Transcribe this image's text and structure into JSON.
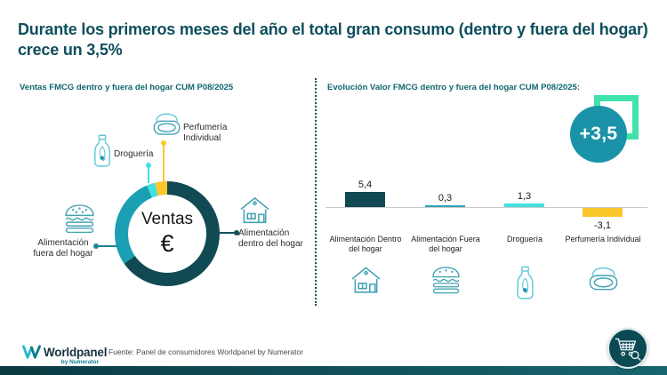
{
  "title": "Durante los primeros meses del año el total gran consumo (dentro y fuera del hogar) crece un 3,5%",
  "colors": {
    "title_text": "#0e4e5c",
    "section_header": "#0e676e",
    "dark_teal": "#114a53",
    "medium_teal": "#1b9fb3",
    "cyan": "#42e0de",
    "yellow": "#fcc72d",
    "mint_green": "#3fe3ab",
    "badge_teal": "#1a93a9",
    "icon_stroke": "#44a3b5",
    "bottom_bar": "#0d4650"
  },
  "chart_data": [
    {
      "type": "pie",
      "title": "Ventas FMCG dentro y fuera del hogar CUM P08/2025",
      "center_line1": "Ventas",
      "center_line2": "€",
      "categories": [
        "Alimentación dentro del hogar",
        "Alimentación fuera del hogar",
        "Droguería",
        "Perfumería Individual"
      ],
      "values_pct": [
        65.3,
        28.3,
        2.6,
        3.8
      ],
      "colors": [
        "#114a53",
        "#1b9fb3",
        "#42e0de",
        "#fcc72d"
      ],
      "legend_position": "around-donut"
    },
    {
      "type": "bar",
      "title": "Evolución Valor FMCG dentro y fuera del hogar CUM P08/2025:",
      "categories": [
        "Alimentación Dentro del hogar",
        "Alimentación Fuera del hogar",
        "Droguería",
        "Perfumería Individual"
      ],
      "values": [
        5.4,
        0.3,
        1.3,
        -3.1
      ],
      "value_labels": [
        "5,4",
        "0,3",
        "1,3",
        "-3,1"
      ],
      "colors": [
        "#114a53",
        "#2fa3bd",
        "#42e0de",
        "#fcc72d"
      ],
      "total_change_label": "+3,5",
      "ylim": [
        -4,
        6
      ],
      "grid": false
    }
  ],
  "footer": {
    "logo_text": "Worldpanel",
    "logo_subtext": "by Numerator",
    "source": "Fuente: Panel de consumidores Worldpanel by Numerator"
  }
}
